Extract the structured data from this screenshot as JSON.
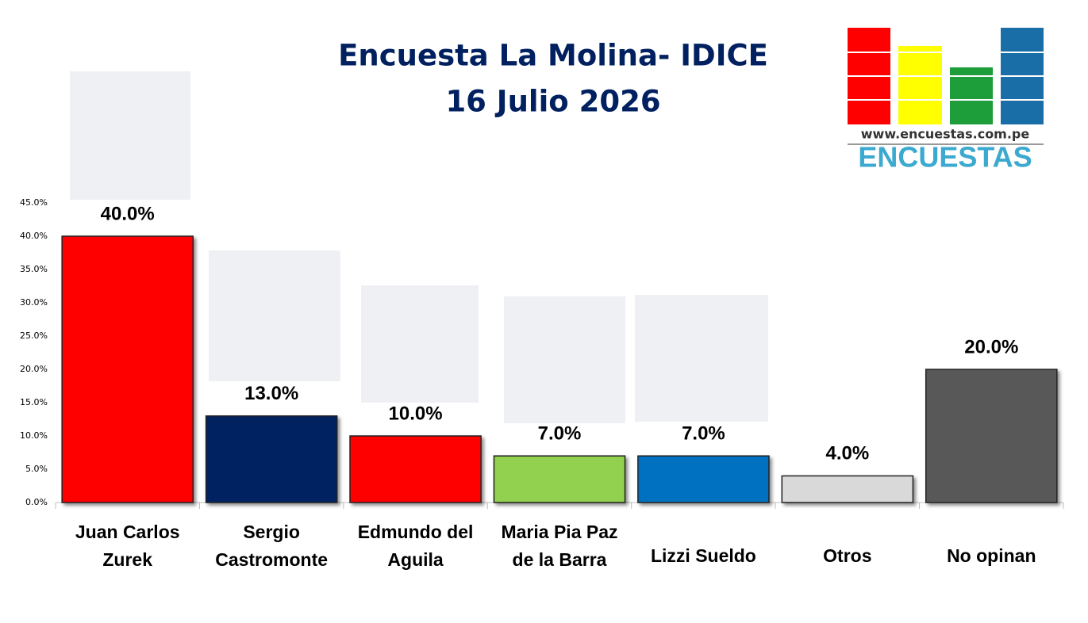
{
  "chart_data": {
    "type": "bar",
    "title": "Encuesta La Molina- IDICE",
    "subtitle": "16 Julio 2026",
    "categories": [
      "Juan Carlos Zurek",
      "Sergio Castromonte",
      "Edmundo del Aguila",
      "Maria Pia Paz de la Barra",
      "Lizzi Sueldo",
      "Otros",
      "No opinan"
    ],
    "values": [
      40,
      13,
      10,
      7,
      7,
      4,
      20
    ],
    "value_labels": [
      "40.0%",
      "13.0%",
      "10.0%",
      "7.0%",
      "7.0%",
      "4.0%",
      "20.0%"
    ],
    "colors": [
      "#ff0000",
      "#002060",
      "#ff0000",
      "#92d050",
      "#0070c0",
      "#d9d9d9",
      "#595959"
    ],
    "ylim": [
      0,
      45
    ],
    "yticks": [
      {
        "value": 0,
        "label": "0.0%"
      },
      {
        "value": 5,
        "label": "5.0%"
      },
      {
        "value": 10,
        "label": "10.0%"
      },
      {
        "value": 15,
        "label": "15.0%"
      },
      {
        "value": 20,
        "label": "20.0%"
      },
      {
        "value": 25,
        "label": "25.0%"
      },
      {
        "value": 30,
        "label": "30.0%"
      },
      {
        "value": 35,
        "label": "35.0%"
      },
      {
        "value": 40,
        "label": "40.0%"
      },
      {
        "value": 45,
        "label": "45.0%"
      }
    ],
    "grid": false
  },
  "logo": {
    "url": "www.encuestas.com.pe",
    "name": "ENCUESTAS"
  }
}
